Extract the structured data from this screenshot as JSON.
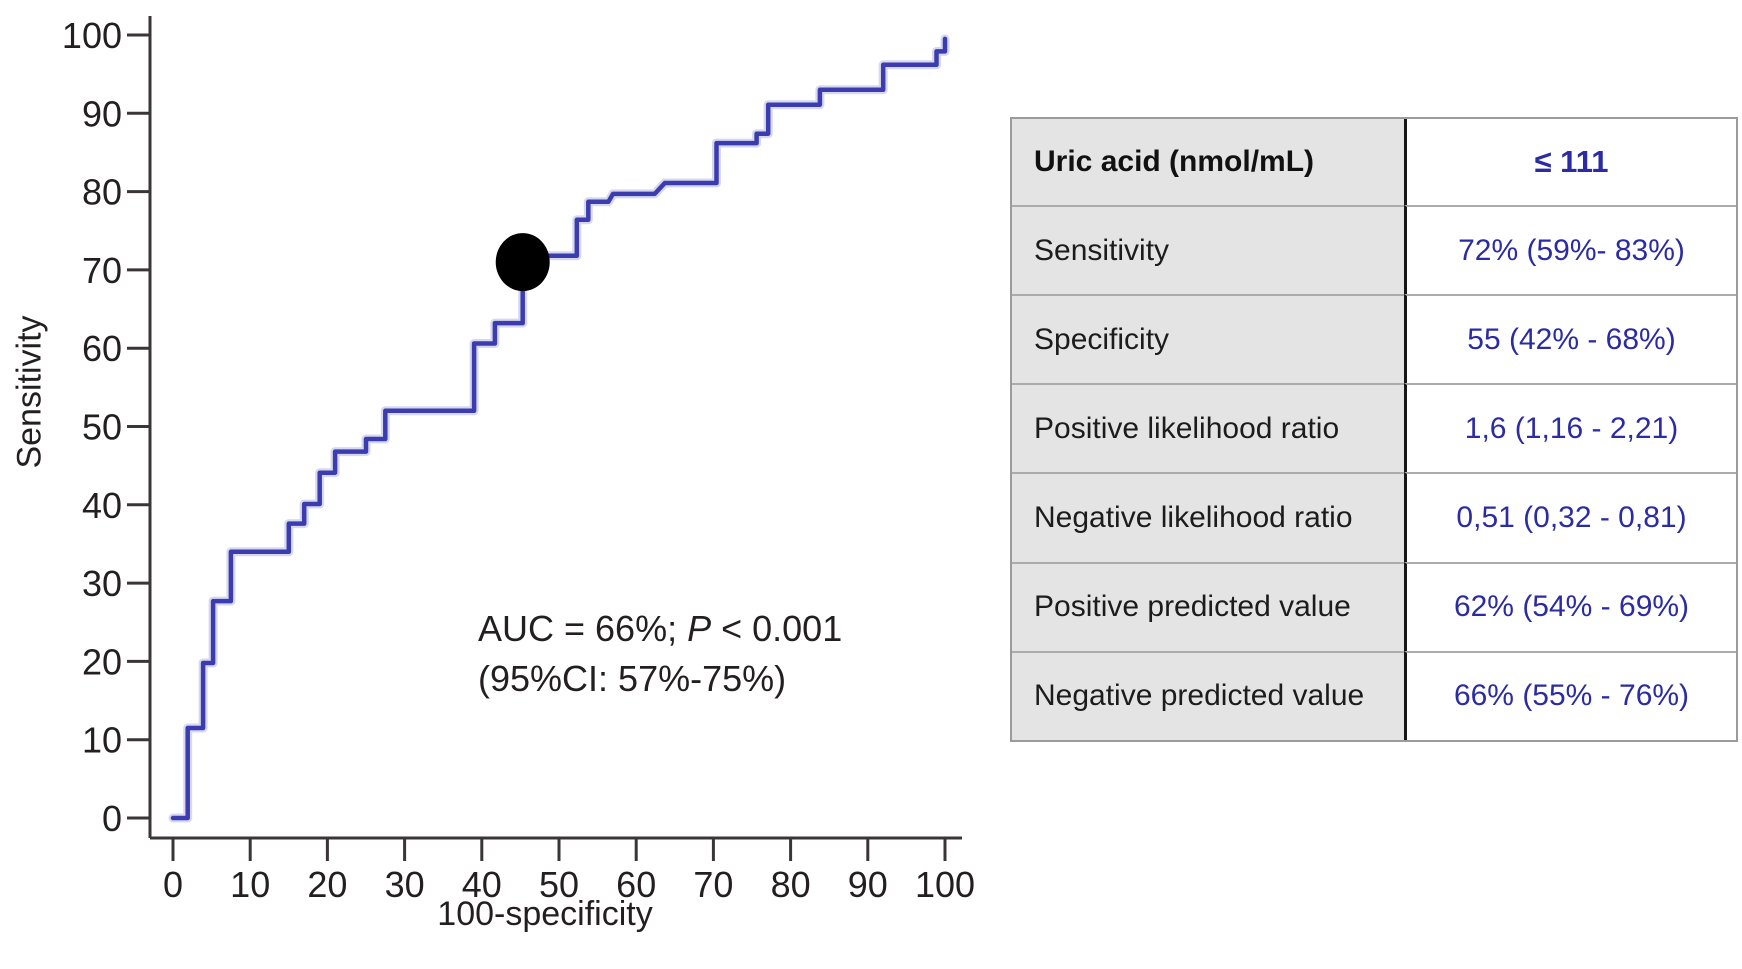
{
  "chart_data": {
    "type": "line",
    "subtype": "roc-step-curve",
    "xlabel": "100-specificity",
    "ylabel": "Sensitivity",
    "xlim": [
      0,
      100
    ],
    "ylim": [
      0,
      100
    ],
    "x_ticks": [
      0,
      10,
      20,
      30,
      40,
      50,
      60,
      70,
      80,
      90,
      100
    ],
    "y_ticks": [
      0,
      10,
      20,
      30,
      40,
      50,
      60,
      70,
      80,
      90,
      100
    ],
    "grid": false,
    "legend": "none",
    "series": [
      {
        "name": "ROC curve (uric acid)",
        "color": "#3b3cb0",
        "points": [
          [
            0,
            0
          ],
          [
            1.9,
            0
          ],
          [
            1.9,
            11.5
          ],
          [
            3.9,
            11.5
          ],
          [
            3.9,
            19.8
          ],
          [
            5.2,
            19.8
          ],
          [
            5.2,
            27.7
          ],
          [
            7.5,
            27.7
          ],
          [
            7.5,
            34
          ],
          [
            15,
            34
          ],
          [
            15,
            37.6
          ],
          [
            17,
            37.6
          ],
          [
            17,
            40.1
          ],
          [
            19,
            40.1
          ],
          [
            19,
            44.1
          ],
          [
            21,
            44.1
          ],
          [
            21,
            46.8
          ],
          [
            25,
            46.8
          ],
          [
            25,
            48.4
          ],
          [
            27.5,
            48.4
          ],
          [
            27.5,
            52
          ],
          [
            39,
            52
          ],
          [
            39,
            60.6
          ],
          [
            41.7,
            60.6
          ],
          [
            41.7,
            63.2
          ],
          [
            45.3,
            63.2
          ],
          [
            45.3,
            71.8
          ],
          [
            52.3,
            71.8
          ],
          [
            52.3,
            76.4
          ],
          [
            53.8,
            76.4
          ],
          [
            53.8,
            78.7
          ],
          [
            56.4,
            78.7
          ],
          [
            57,
            79.7
          ],
          [
            62.4,
            79.7
          ],
          [
            63.7,
            81.1
          ],
          [
            70.4,
            81.1
          ],
          [
            70.4,
            86.2
          ],
          [
            75.6,
            86.2
          ],
          [
            75.6,
            87.4
          ],
          [
            77.1,
            87.4
          ],
          [
            77.1,
            91.1
          ],
          [
            83.8,
            91.1
          ],
          [
            83.8,
            93
          ],
          [
            92,
            93
          ],
          [
            92,
            96.2
          ],
          [
            98.9,
            96.2
          ],
          [
            98.9,
            97.9
          ],
          [
            100,
            97.9
          ],
          [
            100,
            99.5
          ]
        ]
      }
    ],
    "operating_point": {
      "x": 45.3,
      "y": 71,
      "color": "#000000"
    },
    "annotation": {
      "line1_pre": "AUC = 66%; ",
      "line1_italic": "P",
      "line1_post": " < 0.001",
      "line2": "(95%CI: 57%-75%)"
    },
    "axis_color": "#3a3637"
  },
  "table": {
    "header": {
      "label": "Uric acid (nmol/mL)",
      "value": "≤ 111"
    },
    "rows": [
      {
        "label": "Sensitivity",
        "value": "72% (59%- 83%)"
      },
      {
        "label": "Specificity",
        "value": "55 (42% - 68%)"
      },
      {
        "label": "Positive likelihood ratio",
        "value": "1,6 (1,16 - 2,21)"
      },
      {
        "label": "Negative likelihood ratio",
        "value": "0,51 (0,32 - 0,81)"
      },
      {
        "label": "Positive predicted value",
        "value": "62% (54% - 69%)"
      },
      {
        "label": "Negative predicted value",
        "value": "66% (55% - 76%)"
      }
    ],
    "colors": {
      "label_bg": "#e4e4e4",
      "value_text": "#2b2ba4",
      "divider": "#161616",
      "border": "#9b9b9b"
    }
  }
}
